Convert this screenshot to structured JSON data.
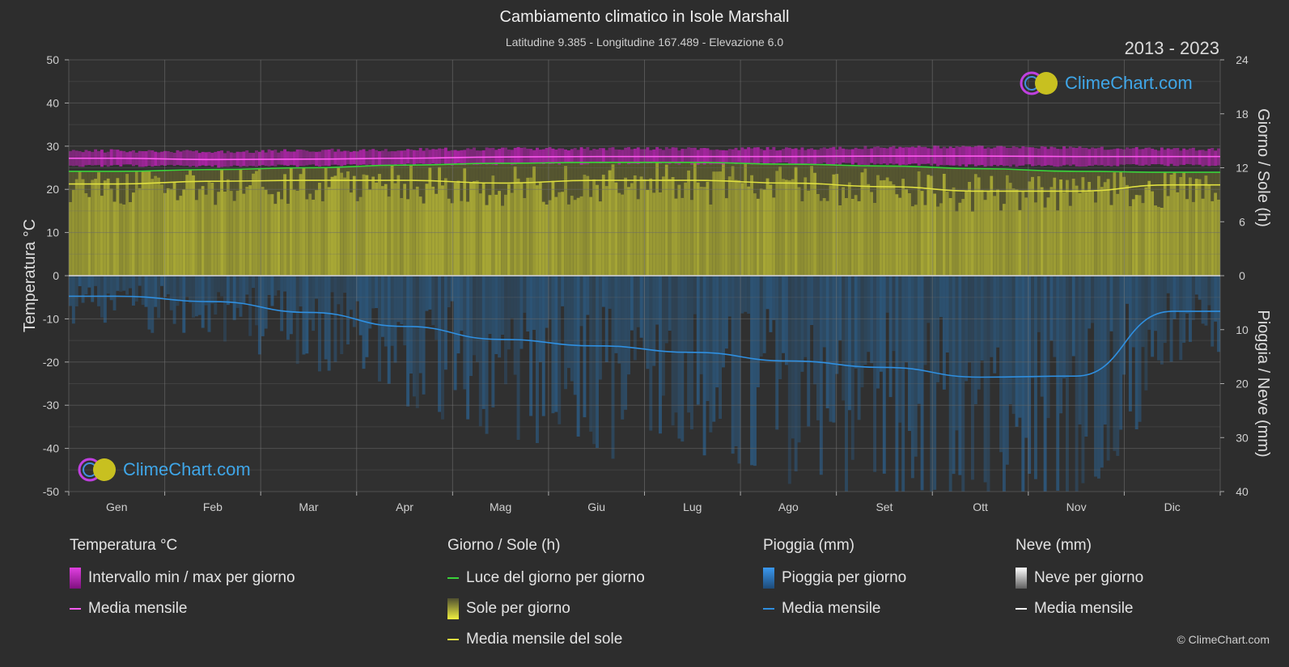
{
  "header": {
    "title": "Cambiamento climatico in Isole Marshall",
    "subtitle": "Latitudine 9.385 - Longitudine 167.489 - Elevazione 6.0",
    "years": "2013 - 2023",
    "copyright": "© ClimeChart.com",
    "logo_text": "ClimeChart.com"
  },
  "colors": {
    "background": "#2d2d2d",
    "temp_band": "#d020c8",
    "temp_mean": "#ff5cf0",
    "daylight": "#3ad23a",
    "sun_fill": "#b8b836",
    "sun_mean": "#e0e040",
    "rain_fill": "#2a6ea8",
    "rain_mean": "#2f8fe0",
    "snow_mean": "#ffffff"
  },
  "chart_data": {
    "type": "area",
    "months": [
      "Gen",
      "Feb",
      "Mar",
      "Apr",
      "Mag",
      "Giu",
      "Lug",
      "Ago",
      "Set",
      "Ott",
      "Nov",
      "Dic"
    ],
    "left_axis": {
      "label": "Temperatura °C",
      "range": [
        -50,
        50
      ],
      "ticks": [
        "50",
        "40",
        "30",
        "20",
        "10",
        "0",
        "-10",
        "-20",
        "-30",
        "-40",
        "-50"
      ]
    },
    "right_axis_top": {
      "label": "Giorno / Sole (h)",
      "range": [
        0,
        24
      ],
      "ticks": [
        "24",
        "18",
        "12",
        "6",
        "0"
      ]
    },
    "right_axis_bottom": {
      "label": "Pioggia / Neve (mm)",
      "range": [
        0,
        40
      ],
      "ticks": [
        "0",
        "10",
        "20",
        "30",
        "40"
      ]
    },
    "series": {
      "temp_max": [
        28.5,
        28.3,
        28.6,
        28.8,
        29.0,
        29.0,
        29.0,
        29.0,
        29.4,
        29.4,
        29.2,
        28.9
      ],
      "temp_min": [
        25.8,
        25.6,
        25.8,
        26.0,
        26.2,
        26.3,
        26.3,
        26.3,
        26.1,
        25.8,
        25.8,
        25.9
      ],
      "temp_mean": [
        27.2,
        26.9,
        27.0,
        27.2,
        27.5,
        27.6,
        27.6,
        27.6,
        27.7,
        27.7,
        27.6,
        27.6
      ],
      "daylight_h": [
        11.6,
        11.8,
        12.0,
        12.3,
        12.5,
        12.6,
        12.6,
        12.4,
        12.2,
        11.9,
        11.6,
        11.5
      ],
      "sunshine_h": [
        10.2,
        10.5,
        10.6,
        10.6,
        10.3,
        10.6,
        10.6,
        10.3,
        9.9,
        9.4,
        9.4,
        10.1
      ],
      "rain_mm": [
        3.8,
        4.8,
        6.8,
        9.4,
        11.8,
        13.0,
        14.2,
        15.8,
        17.0,
        18.8,
        18.6,
        6.6
      ]
    },
    "grid": true
  },
  "legend": {
    "temp": {
      "head": "Temperatura °C",
      "band": "Intervallo min / max per giorno",
      "mean": "Media mensile"
    },
    "sun": {
      "head": "Giorno / Sole (h)",
      "daylight": "Luce del giorno per giorno",
      "sun": "Sole per giorno",
      "mean": "Media mensile del sole"
    },
    "rain": {
      "head": "Pioggia (mm)",
      "rain": "Pioggia per giorno",
      "mean": "Media mensile"
    },
    "snow": {
      "head": "Neve (mm)",
      "snow": "Neve per giorno",
      "mean": "Media mensile"
    }
  }
}
